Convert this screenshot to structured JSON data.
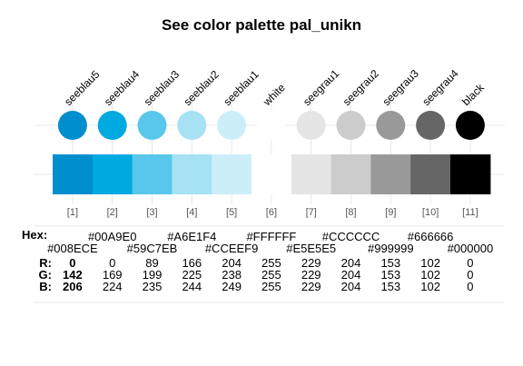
{
  "title": "See color palette pal_unikn",
  "chart_data": {
    "type": "palette",
    "title": "See color palette pal_unikn",
    "palette_name": "pal_unikn",
    "colors": [
      {
        "name": "seeblau5",
        "index": "[1]",
        "hex": "#008ECE",
        "r": 0,
        "g": 142,
        "b": 206
      },
      {
        "name": "seeblau4",
        "index": "[2]",
        "hex": "#00A9E0",
        "r": 0,
        "g": 169,
        "b": 224
      },
      {
        "name": "seeblau3",
        "index": "[3]",
        "hex": "#59C7EB",
        "r": 89,
        "g": 199,
        "b": 235
      },
      {
        "name": "seeblau2",
        "index": "[4]",
        "hex": "#A6E1F4",
        "r": 166,
        "g": 225,
        "b": 244
      },
      {
        "name": "seeblau1",
        "index": "[5]",
        "hex": "#CCEEF9",
        "r": 204,
        "g": 238,
        "b": 249
      },
      {
        "name": "white",
        "index": "[6]",
        "hex": "#FFFFFF",
        "r": 255,
        "g": 255,
        "b": 255
      },
      {
        "name": "seegrau1",
        "index": "[7]",
        "hex": "#E5E5E5",
        "r": 229,
        "g": 229,
        "b": 229
      },
      {
        "name": "seegrau2",
        "index": "[8]",
        "hex": "#CCCCCC",
        "r": 204,
        "g": 204,
        "b": 204
      },
      {
        "name": "seegrau3",
        "index": "[9]",
        "hex": "#999999",
        "r": 153,
        "g": 153,
        "b": 153
      },
      {
        "name": "seegrau4",
        "index": "[10]",
        "hex": "#666666",
        "r": 102,
        "g": 102,
        "b": 102
      },
      {
        "name": "black",
        "index": "[11]",
        "hex": "#000000",
        "r": 0,
        "g": 0,
        "b": 0
      }
    ],
    "row_labels": {
      "hex": "Hex:",
      "r": "R:",
      "g": "G:",
      "b": "B:"
    }
  }
}
